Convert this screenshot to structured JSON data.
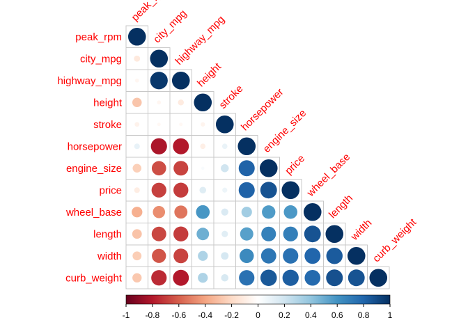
{
  "chart_data": {
    "type": "heatmap",
    "subtype": "correlation-circle-lower-triangle",
    "title": "",
    "variables": [
      "peak_rpm",
      "city_mpg",
      "highway_mpg",
      "height",
      "stroke",
      "horsepower",
      "engine_size",
      "price",
      "wheel_base",
      "length",
      "width",
      "curb_weight"
    ],
    "matrix": [
      [
        1.0
      ],
      [
        -0.12,
        1.0
      ],
      [
        -0.05,
        0.97,
        1.0
      ],
      [
        -0.28,
        -0.05,
        -0.11,
        1.0
      ],
      [
        -0.07,
        -0.04,
        -0.04,
        -0.06,
        1.0
      ],
      [
        0.1,
        -0.82,
        -0.8,
        -0.09,
        0.09,
        1.0
      ],
      [
        -0.24,
        -0.65,
        -0.68,
        0.03,
        0.2,
        0.81,
        1.0
      ],
      [
        -0.1,
        -0.69,
        -0.7,
        0.14,
        0.08,
        0.81,
        0.87,
        1.0
      ],
      [
        -0.36,
        -0.47,
        -0.54,
        0.59,
        0.16,
        0.35,
        0.57,
        0.58,
        1.0
      ],
      [
        -0.29,
        -0.67,
        -0.7,
        0.49,
        0.13,
        0.55,
        0.68,
        0.69,
        0.87,
        1.0
      ],
      [
        -0.25,
        -0.63,
        -0.68,
        0.31,
        0.18,
        0.64,
        0.73,
        0.75,
        0.8,
        0.84,
        1.0
      ],
      [
        -0.27,
        -0.75,
        -0.8,
        0.31,
        0.17,
        0.75,
        0.85,
        0.83,
        0.78,
        0.88,
        0.87,
        1.0
      ]
    ],
    "colorbar": {
      "range": [
        -1,
        1
      ],
      "ticks": [
        "-1",
        "-0.8",
        "-0.6",
        "-0.4",
        "-0.2",
        "0",
        "0.2",
        "0.4",
        "0.6",
        "0.8",
        "1"
      ],
      "tick_values": [
        -1,
        -0.8,
        -0.6,
        -0.4,
        -0.2,
        0,
        0.2,
        0.4,
        0.6,
        0.8,
        1
      ],
      "colors": [
        "#67001f",
        "#b2182b",
        "#d6604d",
        "#f4a582",
        "#fddbc7",
        "#ffffff",
        "#d1e5f0",
        "#92c5de",
        "#4393c3",
        "#2166ac",
        "#053061"
      ]
    },
    "label_color": "#ff0000"
  }
}
